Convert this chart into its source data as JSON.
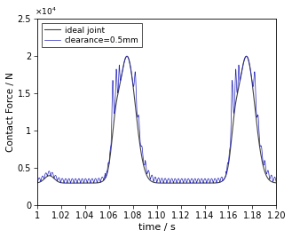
{
  "title": "",
  "xlabel": "time / s",
  "ylabel": "Contact Force / N",
  "xlim": [
    1.0,
    1.2
  ],
  "ylim": [
    0,
    25000
  ],
  "ideal_color": "#444444",
  "clearance_color": "#2222bb",
  "legend_labels": [
    "ideal joint",
    "clearance=0.5mm"
  ],
  "figsize": [
    3.29,
    2.68
  ],
  "dpi": 100
}
